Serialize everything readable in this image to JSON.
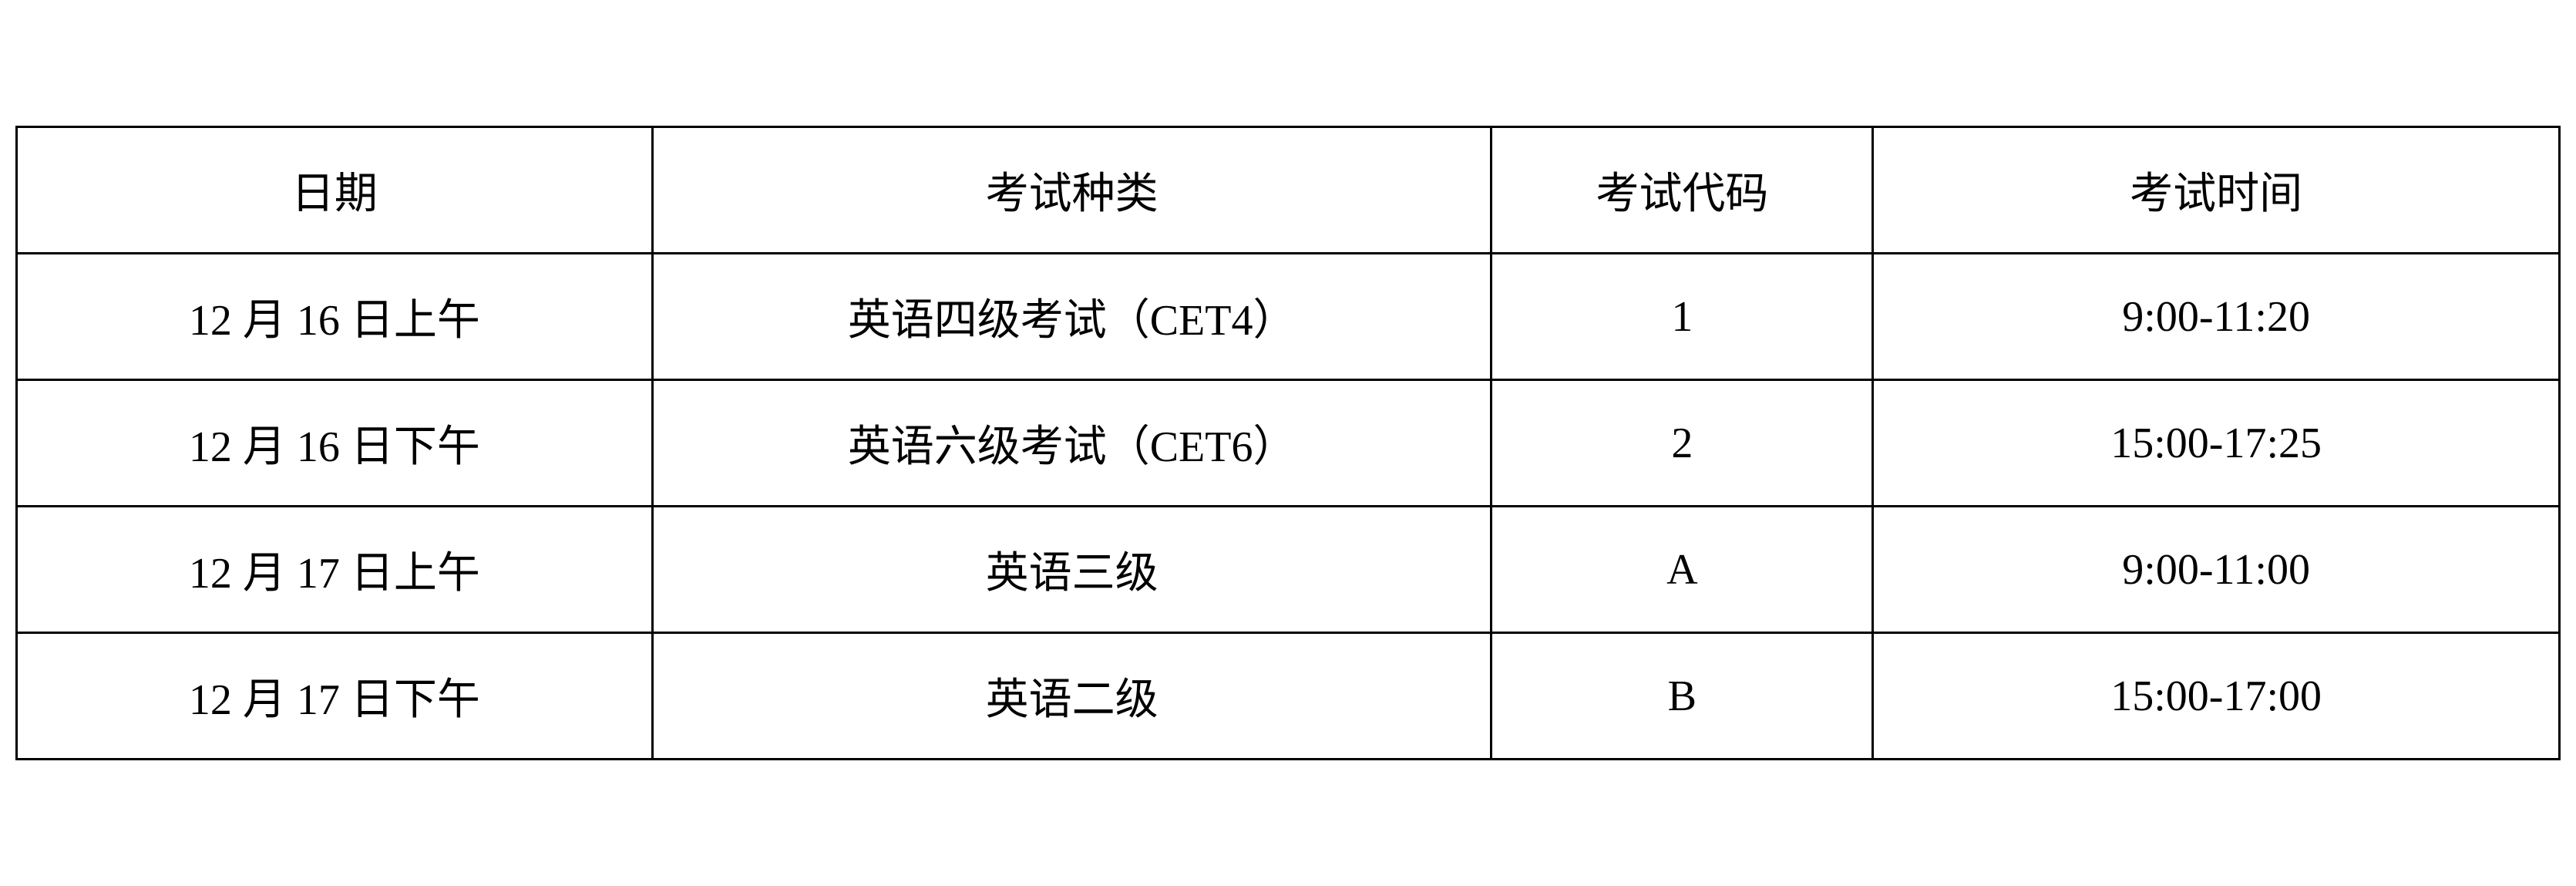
{
  "table": {
    "columns": [
      {
        "label": "日期"
      },
      {
        "label": "考试种类"
      },
      {
        "label": "考试代码"
      },
      {
        "label": "考试时间"
      }
    ],
    "rows": [
      {
        "date": "12 月 16 日上午",
        "type": "英语四级考试（CET4）",
        "code": "1",
        "time": "9:00-11:20"
      },
      {
        "date": "12 月 16 日下午",
        "type": "英语六级考试（CET6）",
        "code": "2",
        "time": "15:00-17:25"
      },
      {
        "date": "12 月 17 日上午",
        "type": "英语三级",
        "code": "A",
        "time": "9:00-11:00"
      },
      {
        "date": "12 月 17 日下午",
        "type": "英语二级",
        "code": "B",
        "time": "15:00-17:00"
      }
    ],
    "border_color": "#000000",
    "background_color": "#ffffff",
    "text_color": "#000000",
    "font_size": 56,
    "font_family": "SimSun",
    "border_width": 3,
    "cell_padding": 40,
    "column_widths_percent": [
      25,
      33,
      15,
      27
    ]
  }
}
